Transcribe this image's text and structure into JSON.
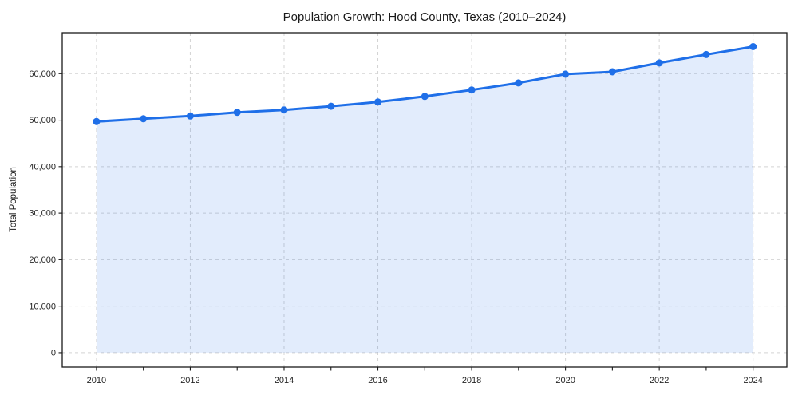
{
  "figure": {
    "background": "#ffffff"
  },
  "chart_data": {
    "type": "area",
    "title": "Population Growth: Hood County, Texas (2010–2024)",
    "xlabel": "",
    "ylabel": "Total Population",
    "x": [
      2010,
      2011,
      2012,
      2013,
      2014,
      2015,
      2016,
      2017,
      2018,
      2019,
      2020,
      2021,
      2022,
      2023,
      2024
    ],
    "series": [
      {
        "name": "Total Population",
        "values": [
          49700,
          50300,
          50900,
          51700,
          52200,
          53000,
          53900,
          55100,
          56500,
          58000,
          59900,
          60400,
          62300,
          64100,
          65800
        ]
      }
    ],
    "x_major_ticks": [
      2010,
      2012,
      2014,
      2016,
      2018,
      2020,
      2022,
      2024
    ],
    "x_major_tick_labels": [
      "2010",
      "2012",
      "2014",
      "2016",
      "2018",
      "2020",
      "2022",
      "2024"
    ],
    "x_minor_tick_years": [
      2010,
      2011,
      2012,
      2013,
      2014,
      2015,
      2016,
      2017,
      2018,
      2019,
      2020,
      2021,
      2022,
      2023,
      2024
    ],
    "y_ticks": [
      0,
      10000,
      20000,
      30000,
      40000,
      50000,
      60000
    ],
    "y_tick_labels": [
      "0",
      "10,000",
      "20,000",
      "30,000",
      "40,000",
      "50,000",
      "60,000"
    ],
    "xlim": [
      2009.27,
      2024.72
    ],
    "ylim": [
      -3100,
      68800
    ],
    "grid": true,
    "grid_style": "dashed",
    "legend": "none",
    "baseline_value": 0,
    "marker": "circle",
    "marker_radius": 4.5,
    "line_width": 3,
    "colors": {
      "line": "#1f6fe8",
      "marker": "#1f6fe8",
      "fill": "rgba(31,111,232,0.13)",
      "grid": "#d4d4d4",
      "spine": "#1a1a1a",
      "title_text": "#1a1a1a",
      "tick_text": "#262626"
    }
  }
}
